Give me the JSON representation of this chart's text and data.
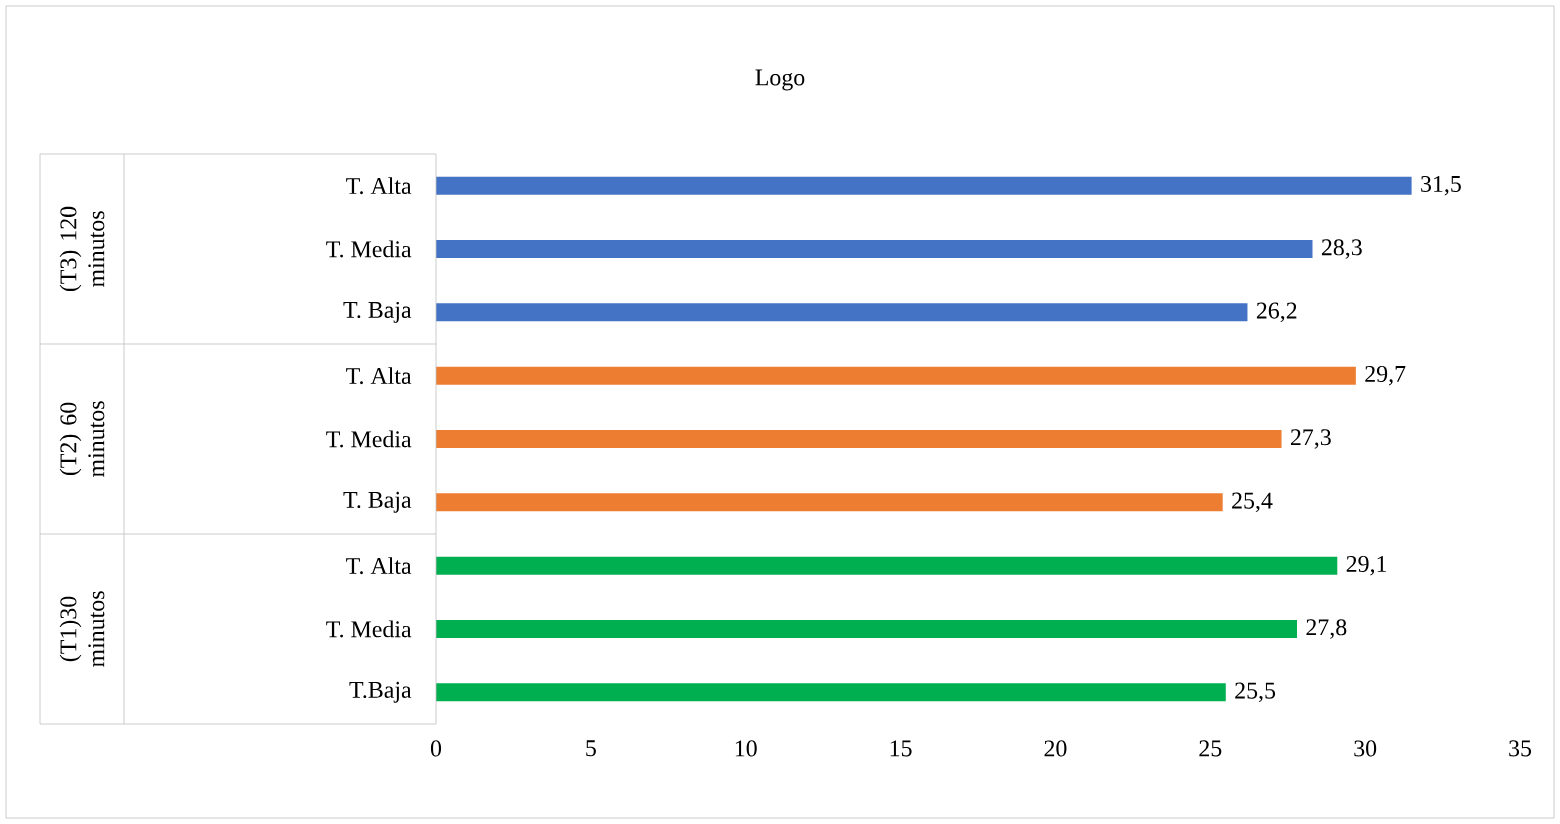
{
  "chart_data": {
    "type": "bar",
    "orientation": "horizontal",
    "title": "Logo",
    "categories": [
      "T. Alta",
      "T. Media",
      "T. Baja",
      "T. Alta",
      "T. Media",
      "T. Baja",
      "T. Alta",
      "T. Media",
      "T.Baja"
    ],
    "values": [
      31.5,
      28.3,
      26.2,
      29.7,
      27.3,
      25.4,
      29.1,
      27.8,
      25.5
    ],
    "value_labels": [
      "31,5",
      "28,3",
      "26,2",
      "29,7",
      "27,3",
      "25,4",
      "29,1",
      "27,8",
      "25,5"
    ],
    "colors": [
      "#4472c4",
      "#4472c4",
      "#4472c4",
      "#ed7d31",
      "#ed7d31",
      "#ed7d31",
      "#00b050",
      "#00b050",
      "#00b050"
    ],
    "xlim": [
      0,
      35
    ],
    "xticks": [
      0,
      5,
      10,
      15,
      20,
      25,
      30,
      35
    ],
    "annotations": [
      "(T3) 120 minutos",
      "(T2) 60 minutos",
      "(T1)30 minutos"
    ],
    "grid": false
  }
}
